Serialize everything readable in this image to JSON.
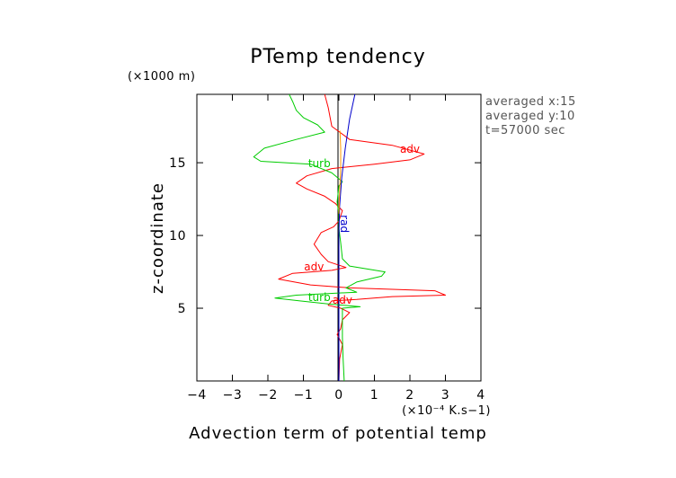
{
  "chart_data": {
    "type": "line",
    "title": "PTemp tendency",
    "xlabel": "Advection term of potential temp",
    "ylabel": "z-coordinate",
    "x_unit": "(×10⁻⁴ K.s−1)",
    "y_unit": "(×1000 m)",
    "xlim": [
      -4,
      4
    ],
    "ylim": [
      0,
      19.7
    ],
    "x_ticks": [
      "−4",
      "−3",
      "−2",
      "−1",
      "0",
      "1",
      "2",
      "3",
      "4"
    ],
    "y_ticks": [
      "5",
      "10",
      "15"
    ],
    "info_lines": [
      "averaged  x:15",
      "averaged  y:10",
      "t=57000 sec"
    ],
    "grid": false,
    "series": [
      {
        "name": "adv",
        "color": "#ff0000",
        "labels": [
          {
            "text": "adv",
            "x": 2.0,
            "y": 15.7
          },
          {
            "text": "adv",
            "x": -0.7,
            "y": 7.6
          },
          {
            "text": "adv",
            "x": 0.1,
            "y": 5.3
          }
        ],
        "points": [
          [
            0,
            0
          ],
          [
            0.02,
            1.5
          ],
          [
            0.1,
            2.5
          ],
          [
            -0.05,
            3.2
          ],
          [
            0.05,
            3.6
          ],
          [
            0.1,
            4.2
          ],
          [
            0.3,
            4.7
          ],
          [
            0.05,
            5.0
          ],
          [
            -0.3,
            5.2
          ],
          [
            -0.2,
            5.5
          ],
          [
            0.5,
            5.6
          ],
          [
            1.5,
            5.8
          ],
          [
            3.0,
            5.9
          ],
          [
            2.7,
            6.2
          ],
          [
            1.5,
            6.3
          ],
          [
            0.3,
            6.4
          ],
          [
            -0.8,
            6.6
          ],
          [
            -1.7,
            7.0
          ],
          [
            -1.3,
            7.4
          ],
          [
            -0.2,
            7.6
          ],
          [
            0.2,
            7.8
          ],
          [
            -0.3,
            8.2
          ],
          [
            -0.5,
            8.7
          ],
          [
            -0.7,
            9.4
          ],
          [
            -0.5,
            10.2
          ],
          [
            -0.15,
            10.6
          ],
          [
            0,
            11.0
          ],
          [
            0.1,
            11.7
          ],
          [
            -0.1,
            12.2
          ],
          [
            -0.4,
            12.7
          ],
          [
            -0.9,
            13.2
          ],
          [
            -1.2,
            13.6
          ],
          [
            -0.9,
            14.1
          ],
          [
            -0.2,
            14.6
          ],
          [
            1.0,
            14.9
          ],
          [
            2.0,
            15.2
          ],
          [
            2.4,
            15.6
          ],
          [
            1.5,
            16.2
          ],
          [
            0.3,
            16.6
          ],
          [
            -0.2,
            17.5
          ],
          [
            -0.3,
            18.8
          ],
          [
            -0.4,
            19.7
          ]
        ]
      },
      {
        "name": "turb",
        "color": "#00cc00",
        "labels": [
          {
            "text": "turb",
            "x": -0.55,
            "y": 14.7
          },
          {
            "text": "turb",
            "x": -0.55,
            "y": 5.5
          }
        ],
        "points": [
          [
            0.15,
            0
          ],
          [
            0.12,
            1.5
          ],
          [
            0.1,
            3.0
          ],
          [
            0.1,
            4.5
          ],
          [
            0.1,
            5.0
          ],
          [
            0.6,
            5.1
          ],
          [
            -0.3,
            5.3
          ],
          [
            -1.1,
            5.5
          ],
          [
            -1.8,
            5.7
          ],
          [
            -1.2,
            5.9
          ],
          [
            0.5,
            6.1
          ],
          [
            0.2,
            6.4
          ],
          [
            0.5,
            6.8
          ],
          [
            1.2,
            7.2
          ],
          [
            1.3,
            7.5
          ],
          [
            0.3,
            7.9
          ],
          [
            0.1,
            8.4
          ],
          [
            0.05,
            9.5
          ],
          [
            0,
            10.5
          ],
          [
            0,
            11.5
          ],
          [
            -0.05,
            12.3
          ],
          [
            0,
            13.4
          ],
          [
            0.1,
            13.7
          ],
          [
            -0.2,
            14.3
          ],
          [
            -0.8,
            14.9
          ],
          [
            -2.2,
            15.1
          ],
          [
            -2.4,
            15.4
          ],
          [
            -2.1,
            16.0
          ],
          [
            -1.2,
            16.6
          ],
          [
            -0.4,
            17.1
          ],
          [
            -0.6,
            17.6
          ],
          [
            -1.0,
            18.1
          ],
          [
            -1.2,
            18.6
          ],
          [
            -1.3,
            19.2
          ],
          [
            -1.4,
            19.7
          ]
        ]
      },
      {
        "name": "rad",
        "color": "#0000cc",
        "labels": [
          {
            "text": "rad",
            "x": 0.05,
            "y": 10.8
          }
        ],
        "points": [
          [
            0,
            0
          ],
          [
            0,
            3
          ],
          [
            0,
            6
          ],
          [
            0,
            8
          ],
          [
            0,
            10
          ],
          [
            0.02,
            12
          ],
          [
            0.08,
            14
          ],
          [
            0.18,
            16
          ],
          [
            0.3,
            18
          ],
          [
            0.45,
            19.7
          ]
        ]
      },
      {
        "name": "",
        "color": "#ff9900",
        "labels": [],
        "points": [
          [
            0,
            11.5
          ],
          [
            0.02,
            13
          ],
          [
            0.05,
            14.5
          ],
          [
            0.05,
            16.0
          ],
          [
            0.03,
            17.2
          ]
        ]
      }
    ]
  }
}
